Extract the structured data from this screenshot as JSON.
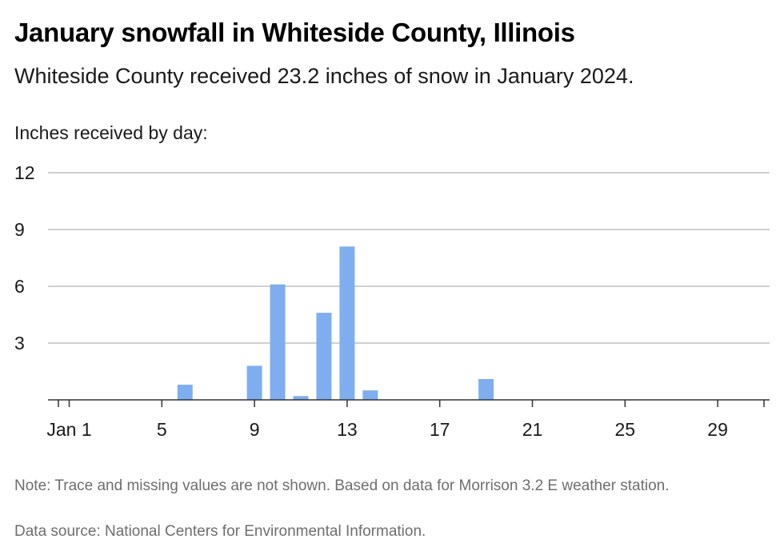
{
  "header": {
    "title": "January snowfall in Whiteside County, Illinois",
    "subtitle": "Whiteside County received 23.2 inches of snow in January 2024."
  },
  "footer": {
    "note": "Note: Trace and missing values are not shown. Based on data for Morrison 3.2 E weather station.",
    "source": "Data source: National Centers for Environmental Information."
  },
  "chart_data": {
    "type": "bar",
    "title": "January snowfall in Whiteside County, Illinois",
    "ylabel": "Inches received by day:",
    "xlabel": "",
    "ylim": [
      0,
      12
    ],
    "yticks": [
      "3",
      "6",
      "9",
      "12"
    ],
    "ytick_values": [
      3,
      6,
      9,
      12
    ],
    "xticks": [
      {
        "day": 1,
        "label": "Jan 1"
      },
      {
        "day": 5,
        "label": "5"
      },
      {
        "day": 9,
        "label": "9"
      },
      {
        "day": 13,
        "label": "13"
      },
      {
        "day": 17,
        "label": "17"
      },
      {
        "day": 21,
        "label": "21"
      },
      {
        "day": 25,
        "label": "25"
      },
      {
        "day": 29,
        "label": "29"
      }
    ],
    "x_range": [
      1,
      31
    ],
    "grid": true,
    "bar_color": "#7eaef0",
    "days": [
      6,
      9,
      10,
      11,
      12,
      13,
      14,
      19
    ],
    "values": [
      0.8,
      1.8,
      6.1,
      0.2,
      4.6,
      8.1,
      0.5,
      1.1
    ]
  }
}
